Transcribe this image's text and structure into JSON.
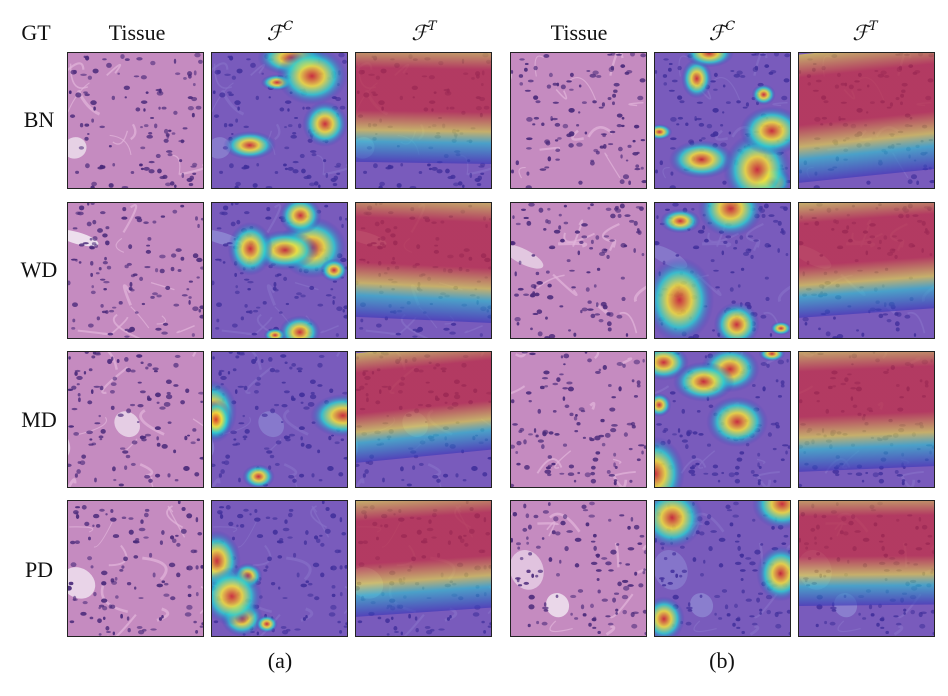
{
  "figure": {
    "gt_label": "GT",
    "groups": [
      {
        "caption": "(a)",
        "columns": [
          {
            "label": "Tissue",
            "kind": "tissue"
          },
          {
            "label": "ℱ",
            "superscript": "C",
            "kind": "cnn"
          },
          {
            "label": "ℱ",
            "superscript": "T",
            "kind": "transformer"
          }
        ]
      },
      {
        "caption": "(b)",
        "columns": [
          {
            "label": "Tissue",
            "kind": "tissue"
          },
          {
            "label": "ℱ",
            "superscript": "C",
            "kind": "cnn"
          },
          {
            "label": "ℱ",
            "superscript": "T",
            "kind": "transformer"
          }
        ]
      }
    ],
    "rows": [
      {
        "label": "BN"
      },
      {
        "label": "WD"
      },
      {
        "label": "MD"
      },
      {
        "label": "PD"
      }
    ],
    "colors": {
      "tissue_base": "#c58bc0",
      "nuclei": "#4a2a7a",
      "lumen": "#f3eaf3",
      "heat_low": "#3b35b8",
      "heat_mid": "#2ecbd0",
      "heat_midhigh": "#f4e23a",
      "heat_high": "#d6262a"
    }
  }
}
